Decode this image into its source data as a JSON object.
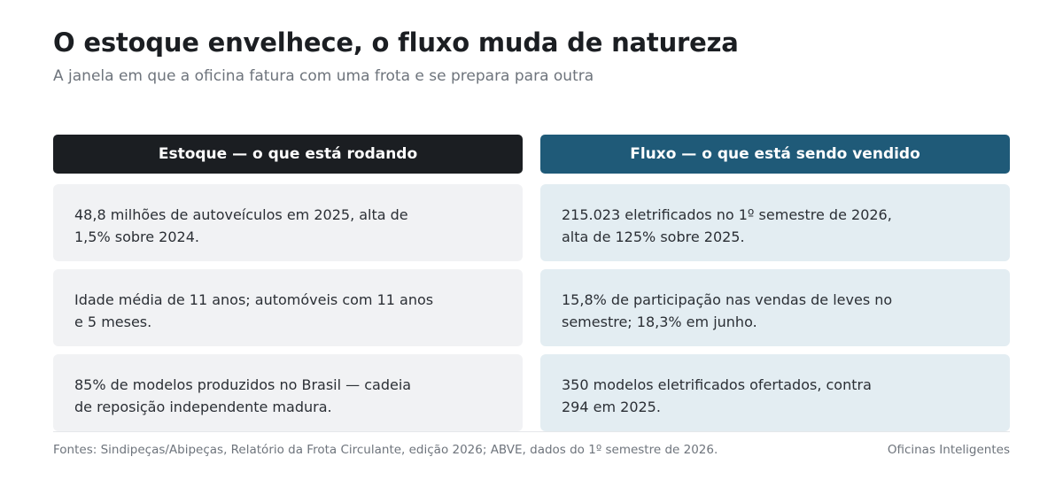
{
  "title": "O estoque envelhece, o fluxo muda de natureza",
  "subtitle": "A janela em que a oficina fatura com uma frota e se prepara para outra",
  "columns": [
    {
      "header": "Estoque — o que está rodando",
      "cards": [
        {
          "line1": "48,8 milhões de autoveículos em 2025, alta de",
          "line2": "1,5% sobre 2024."
        },
        {
          "line1": "Idade média de 11 anos; automóveis com 11 anos",
          "line2": "e 5 meses."
        },
        {
          "line1": "85% de modelos produzidos no Brasil — cadeia",
          "line2": "de reposição independente madura."
        }
      ]
    },
    {
      "header": "Fluxo — o que está sendo vendido",
      "cards": [
        {
          "line1": "215.023 eletrificados no 1º semestre de 2026,",
          "line2": "alta de 125% sobre 2025."
        },
        {
          "line1": "15,8% de participação nas vendas de leves no",
          "line2": "semestre; 18,3% em junho."
        },
        {
          "line1": "350 modelos eletrificados ofertados, contra",
          "line2": "294 em 2025."
        }
      ]
    }
  ],
  "footer": {
    "sources": "Fontes: Sindipeças/Abipeças, Relatório da Frota Circulante, edição 2026; ABVE, dados do 1º semestre de 2026.",
    "brand": "Oficinas Inteligentes"
  },
  "colors": {
    "stock_header": "#1b1e22",
    "flow_header": "#1f5a78",
    "stock_card": "#f1f2f4",
    "flow_card": "#e3edf2"
  }
}
